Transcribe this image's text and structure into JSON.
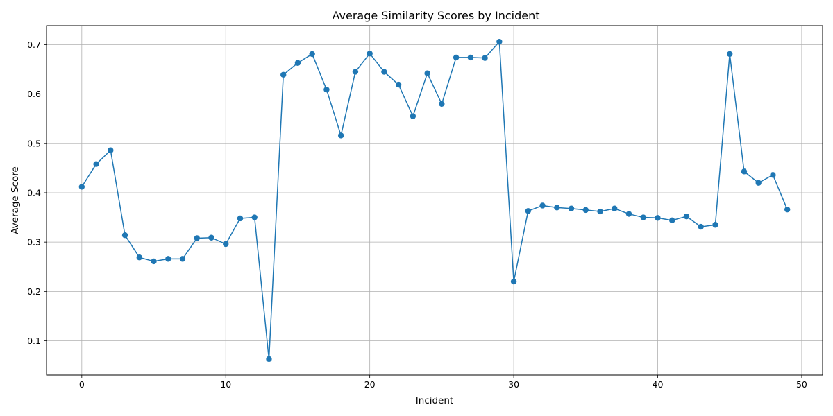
{
  "chart_data": {
    "type": "line",
    "title": "Average Similarity Scores by Incident",
    "xlabel": "Incident",
    "ylabel": "Average Score",
    "xlim": [
      -2.45,
      51.45
    ],
    "ylim": [
      0.0305,
      0.7385
    ],
    "xticks": [
      0,
      10,
      20,
      30,
      40,
      50
    ],
    "yticks": [
      0.1,
      0.2,
      0.3,
      0.4,
      0.5,
      0.6,
      0.7
    ],
    "xtick_labels": [
      "0",
      "10",
      "20",
      "30",
      "40",
      "50"
    ],
    "ytick_labels": [
      "0.1",
      "0.2",
      "0.3",
      "0.4",
      "0.5",
      "0.6",
      "0.7"
    ],
    "grid": true,
    "legend": "none",
    "color": "#1f77b4",
    "marker": "circle",
    "x": [
      0,
      1,
      2,
      3,
      4,
      5,
      6,
      7,
      8,
      9,
      10,
      11,
      12,
      13,
      14,
      15,
      16,
      17,
      18,
      19,
      20,
      21,
      22,
      23,
      24,
      25,
      26,
      27,
      28,
      29,
      30,
      31,
      32,
      33,
      34,
      35,
      36,
      37,
      38,
      39,
      40,
      41,
      42,
      43,
      44,
      45,
      46,
      47,
      48,
      49
    ],
    "y": [
      0.412,
      0.458,
      0.486,
      0.314,
      0.269,
      0.261,
      0.266,
      0.266,
      0.308,
      0.309,
      0.296,
      0.348,
      0.35,
      0.063,
      0.639,
      0.663,
      0.681,
      0.609,
      0.516,
      0.645,
      0.682,
      0.645,
      0.619,
      0.555,
      0.642,
      0.58,
      0.674,
      0.674,
      0.673,
      0.706,
      0.22,
      0.363,
      0.374,
      0.37,
      0.368,
      0.365,
      0.362,
      0.368,
      0.357,
      0.35,
      0.349,
      0.344,
      0.352,
      0.331,
      0.335,
      0.681,
      0.443,
      0.42,
      0.436,
      0.366
    ]
  }
}
